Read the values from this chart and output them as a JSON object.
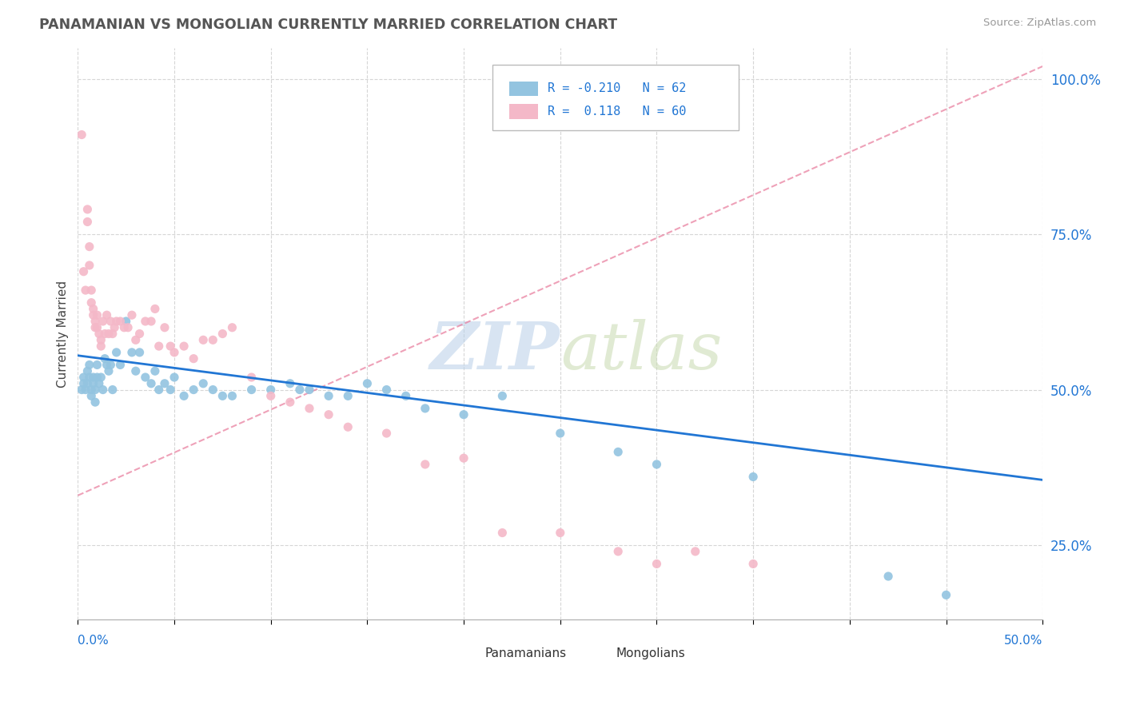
{
  "title": "PANAMANIAN VS MONGOLIAN CURRENTLY MARRIED CORRELATION CHART",
  "source_text": "Source: ZipAtlas.com",
  "ylabel": "Currently Married",
  "watermark_zip": "ZIP",
  "watermark_atlas": "atlas",
  "xlim": [
    0.0,
    0.5
  ],
  "ylim": [
    0.13,
    1.05
  ],
  "color_panama": "#93c4e0",
  "color_mongolia": "#f4b8c8",
  "trendline_panama_color": "#2176d4",
  "trendline_mongolia_color": "#e87a9b",
  "panama_trendline": [
    0.0,
    0.555,
    0.5,
    0.355
  ],
  "mongolia_trendline": [
    0.0,
    0.33,
    0.5,
    1.02
  ],
  "panama_scatter": [
    [
      0.002,
      0.5
    ],
    [
      0.003,
      0.52
    ],
    [
      0.003,
      0.51
    ],
    [
      0.004,
      0.5
    ],
    [
      0.005,
      0.51
    ],
    [
      0.005,
      0.53
    ],
    [
      0.006,
      0.54
    ],
    [
      0.006,
      0.52
    ],
    [
      0.007,
      0.5
    ],
    [
      0.007,
      0.49
    ],
    [
      0.008,
      0.52
    ],
    [
      0.008,
      0.51
    ],
    [
      0.009,
      0.5
    ],
    [
      0.009,
      0.48
    ],
    [
      0.01,
      0.52
    ],
    [
      0.01,
      0.54
    ],
    [
      0.011,
      0.51
    ],
    [
      0.012,
      0.52
    ],
    [
      0.013,
      0.5
    ],
    [
      0.014,
      0.55
    ],
    [
      0.015,
      0.54
    ],
    [
      0.016,
      0.53
    ],
    [
      0.017,
      0.54
    ],
    [
      0.018,
      0.5
    ],
    [
      0.02,
      0.56
    ],
    [
      0.022,
      0.54
    ],
    [
      0.025,
      0.61
    ],
    [
      0.028,
      0.56
    ],
    [
      0.03,
      0.53
    ],
    [
      0.032,
      0.56
    ],
    [
      0.035,
      0.52
    ],
    [
      0.038,
      0.51
    ],
    [
      0.04,
      0.53
    ],
    [
      0.042,
      0.5
    ],
    [
      0.045,
      0.51
    ],
    [
      0.048,
      0.5
    ],
    [
      0.05,
      0.52
    ],
    [
      0.055,
      0.49
    ],
    [
      0.06,
      0.5
    ],
    [
      0.065,
      0.51
    ],
    [
      0.07,
      0.5
    ],
    [
      0.075,
      0.49
    ],
    [
      0.08,
      0.49
    ],
    [
      0.09,
      0.5
    ],
    [
      0.1,
      0.5
    ],
    [
      0.11,
      0.51
    ],
    [
      0.115,
      0.5
    ],
    [
      0.12,
      0.5
    ],
    [
      0.13,
      0.49
    ],
    [
      0.14,
      0.49
    ],
    [
      0.15,
      0.51
    ],
    [
      0.16,
      0.5
    ],
    [
      0.17,
      0.49
    ],
    [
      0.18,
      0.47
    ],
    [
      0.2,
      0.46
    ],
    [
      0.22,
      0.49
    ],
    [
      0.25,
      0.43
    ],
    [
      0.28,
      0.4
    ],
    [
      0.3,
      0.38
    ],
    [
      0.35,
      0.36
    ],
    [
      0.42,
      0.2
    ],
    [
      0.45,
      0.17
    ]
  ],
  "mongolia_scatter": [
    [
      0.002,
      0.91
    ],
    [
      0.003,
      0.69
    ],
    [
      0.004,
      0.66
    ],
    [
      0.005,
      0.77
    ],
    [
      0.005,
      0.79
    ],
    [
      0.006,
      0.7
    ],
    [
      0.006,
      0.73
    ],
    [
      0.007,
      0.66
    ],
    [
      0.007,
      0.64
    ],
    [
      0.008,
      0.62
    ],
    [
      0.008,
      0.63
    ],
    [
      0.009,
      0.61
    ],
    [
      0.009,
      0.6
    ],
    [
      0.01,
      0.62
    ],
    [
      0.01,
      0.6
    ],
    [
      0.011,
      0.59
    ],
    [
      0.012,
      0.57
    ],
    [
      0.012,
      0.58
    ],
    [
      0.013,
      0.61
    ],
    [
      0.014,
      0.59
    ],
    [
      0.015,
      0.62
    ],
    [
      0.016,
      0.59
    ],
    [
      0.017,
      0.61
    ],
    [
      0.018,
      0.59
    ],
    [
      0.019,
      0.6
    ],
    [
      0.02,
      0.61
    ],
    [
      0.022,
      0.61
    ],
    [
      0.024,
      0.6
    ],
    [
      0.026,
      0.6
    ],
    [
      0.028,
      0.62
    ],
    [
      0.03,
      0.58
    ],
    [
      0.032,
      0.59
    ],
    [
      0.035,
      0.61
    ],
    [
      0.038,
      0.61
    ],
    [
      0.04,
      0.63
    ],
    [
      0.042,
      0.57
    ],
    [
      0.045,
      0.6
    ],
    [
      0.048,
      0.57
    ],
    [
      0.05,
      0.56
    ],
    [
      0.055,
      0.57
    ],
    [
      0.06,
      0.55
    ],
    [
      0.065,
      0.58
    ],
    [
      0.07,
      0.58
    ],
    [
      0.075,
      0.59
    ],
    [
      0.08,
      0.6
    ],
    [
      0.09,
      0.52
    ],
    [
      0.1,
      0.49
    ],
    [
      0.11,
      0.48
    ],
    [
      0.12,
      0.47
    ],
    [
      0.13,
      0.46
    ],
    [
      0.14,
      0.44
    ],
    [
      0.16,
      0.43
    ],
    [
      0.18,
      0.38
    ],
    [
      0.2,
      0.39
    ],
    [
      0.22,
      0.27
    ],
    [
      0.25,
      0.27
    ],
    [
      0.28,
      0.24
    ],
    [
      0.3,
      0.22
    ],
    [
      0.32,
      0.24
    ],
    [
      0.35,
      0.22
    ]
  ]
}
